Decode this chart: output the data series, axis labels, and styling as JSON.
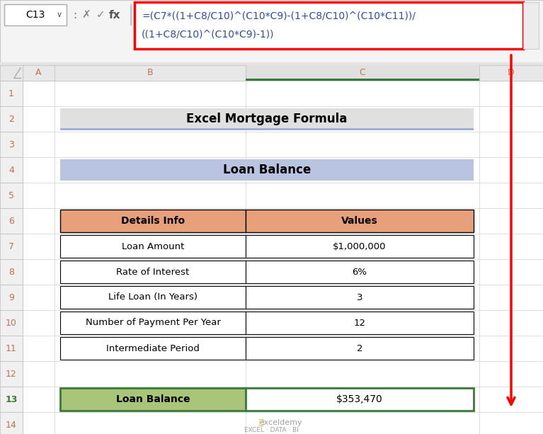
{
  "formula_bar_text_cell": "C13",
  "formula_box_line1": "=(C7*((1+C8/C10)^(C10*C9)-(1+C8/C10)^(C10*C11))/",
  "formula_box_line2": "((1+C8/C10)^(C10*C9)-1))",
  "title_main": "Excel Mortgage Formula",
  "title_section": "Loan Balance",
  "header_col1": "Details Info",
  "header_col2": "Values",
  "rows": [
    [
      "Loan Amount",
      "$1,000,000"
    ],
    [
      "Rate of Interest",
      "6%"
    ],
    [
      "Life Loan (In Years)",
      "3"
    ],
    [
      "Number of Payment Per Year",
      "12"
    ],
    [
      "Intermediate Period",
      "2"
    ]
  ],
  "result_label": "Loan Balance",
  "result_value": "$353,470",
  "bg_color": "#ffffff",
  "header_fill": "#E8A07A",
  "title_main_fill": "#E0E0E0",
  "title_section_fill": "#B8C4E0",
  "title_main_accent": "#9FB0D8",
  "result_label_fill": "#A9C57A",
  "result_value_fill": "#ffffff",
  "formula_box_border": "#FF0000",
  "formula_text_color": "#2E4DA0",
  "arrow_color": "#FF0000",
  "col_header_bg": "#E8E8E8",
  "row_header_bg": "#F0F0F0",
  "row_header_text": "#C07050",
  "col_header_text": "#C07050",
  "formula_bar_bg": "#F4F4F4",
  "cell_border_color": "#000000",
  "grid_color": "#D0D0D0",
  "col_C_header_bg": "#E8E8E8",
  "col_C_accent": "#3A7A3A",
  "row13_header_text": "#3A7A3A",
  "watermark_star": "#DAA520",
  "watermark_text": "#A0A0A0"
}
